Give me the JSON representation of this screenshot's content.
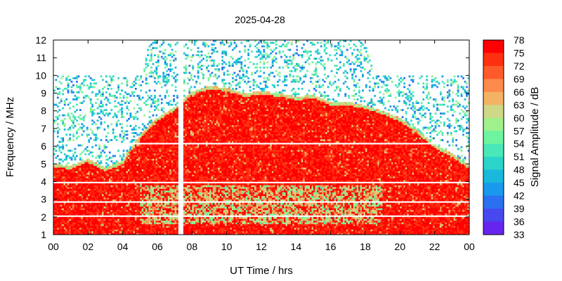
{
  "chart_data": {
    "type": "heatmap",
    "title": "2025-04-28",
    "xlabel": "UT Time / hrs",
    "ylabel": "Frequency / MHz",
    "colorbar_label": "Signal Amplitude / dB",
    "xlim": [
      0,
      24
    ],
    "ylim": [
      1,
      12
    ],
    "x_ticks": [
      "00",
      "02",
      "04",
      "06",
      "08",
      "10",
      "12",
      "14",
      "16",
      "18",
      "20",
      "22",
      "00"
    ],
    "y_ticks": [
      "1",
      "2",
      "3",
      "4",
      "5",
      "6",
      "7",
      "8",
      "9",
      "10",
      "11",
      "12"
    ],
    "colorbar": {
      "range": [
        33,
        78
      ],
      "ticks": [
        "78",
        "75",
        "72",
        "69",
        "66",
        "63",
        "60",
        "57",
        "54",
        "51",
        "48",
        "45",
        "42",
        "39",
        "36",
        "33"
      ],
      "colors": [
        "#ff0000",
        "#ff3010",
        "#ff5a2a",
        "#fc8a4c",
        "#f4b264",
        "#cfd886",
        "#a0f08c",
        "#6ef49e",
        "#4ae8b8",
        "#2ad4c8",
        "#1ab8dc",
        "#1a98ec",
        "#2a70f0",
        "#4848f0",
        "#6624f0"
      ]
    },
    "regions": [
      {
        "name": "strong_band_upper_edge_MHz",
        "x": [
          0,
          1,
          2,
          3,
          4,
          5,
          6,
          7,
          8,
          9,
          10,
          11,
          12,
          13,
          14,
          15,
          16,
          17,
          18,
          19,
          20,
          21,
          22,
          23,
          24
        ],
        "values": [
          5.0,
          4.9,
          5.3,
          4.8,
          5.2,
          6.6,
          7.6,
          8.2,
          9.1,
          9.4,
          9.3,
          9.0,
          9.1,
          9.0,
          8.8,
          8.9,
          8.5,
          8.5,
          8.3,
          8.0,
          7.6,
          6.9,
          6.1,
          5.6,
          4.9
        ]
      },
      {
        "name": "background_noise_upper_edge_MHz",
        "x": [
          0,
          5,
          5.5,
          18,
          18.5,
          24
        ],
        "values": [
          10.0,
          10.0,
          12.0,
          12.0,
          10.0,
          10.0
        ]
      }
    ],
    "gaps": {
      "vertical_gap_time_hrs": 7.35,
      "horizontal_gap_freqs_MHz": [
        2.1,
        2.9,
        4.0,
        6.1
      ]
    }
  }
}
